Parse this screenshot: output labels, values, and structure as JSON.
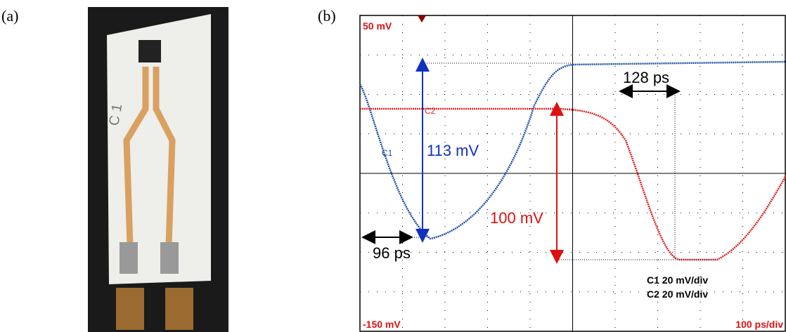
{
  "panel_a": {
    "label": "(a)",
    "handwriting": "C 1"
  },
  "panel_b": {
    "label": "(b)",
    "scale_top": "50 mV",
    "scale_bottom": "-150 mV",
    "timebase": "100 ps/div",
    "trace_labels": [
      "C1",
      "C2"
    ],
    "annotations": {
      "amplitude_c1": "113 mV",
      "amplitude_c2": "100 mV",
      "delay_c1": "96 ps",
      "delay_c2": "128 ps"
    },
    "channel_settings": [
      "C1 20 mV/div",
      "C2 20 mV/div"
    ]
  }
}
